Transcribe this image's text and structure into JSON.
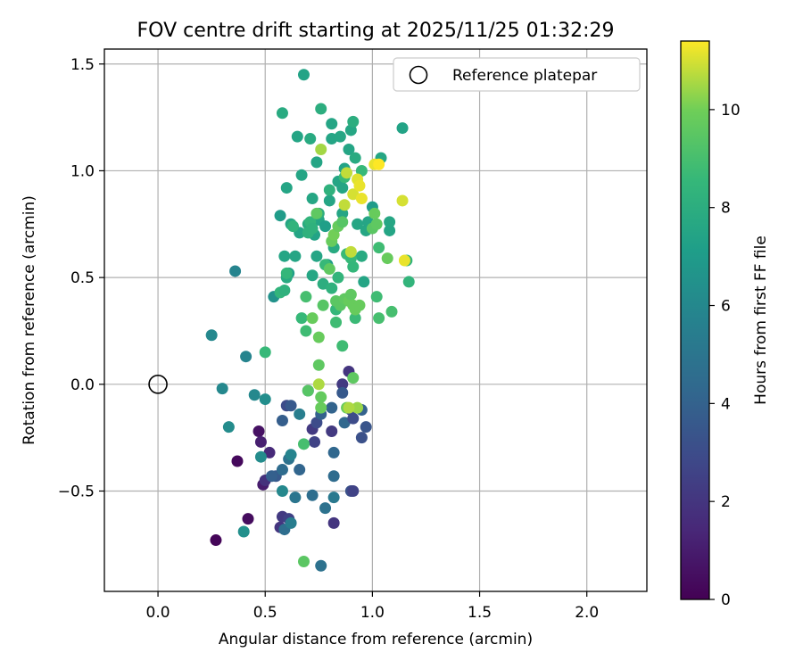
{
  "chart_data": {
    "type": "scatter",
    "title": "FOV centre drift starting at 2025/11/25 01:32:29",
    "xlabel": "Angular distance from reference (arcmin)",
    "ylabel": "Rotation from reference (arcmin)",
    "xlim": [
      -0.25,
      2.28
    ],
    "ylim": [
      -0.97,
      1.57
    ],
    "xticks": [
      0.0,
      0.5,
      1.0,
      1.5,
      2.0
    ],
    "xtick_labels": [
      "0.0",
      "0.5",
      "1.0",
      "1.5",
      "2.0"
    ],
    "yticks": [
      -0.5,
      0.0,
      0.5,
      1.0,
      1.5
    ],
    "ytick_labels": [
      "−0.5",
      "0.0",
      "0.5",
      "1.0",
      "1.5"
    ],
    "grid": true,
    "legend": {
      "location": "upper-right",
      "entries": [
        "Reference platepar"
      ]
    },
    "reference_point": {
      "label": "Reference platepar",
      "x": 0.0,
      "y": 0.0
    },
    "colorbar": {
      "label": "Hours from first FF file",
      "colormap": "viridis",
      "range": [
        0,
        11.4
      ],
      "ticks": [
        0,
        2,
        4,
        6,
        8,
        10
      ],
      "tick_labels": [
        "0",
        "2",
        "4",
        "6",
        "8",
        "10"
      ]
    },
    "points": [
      [
        0.27,
        -0.73,
        0.2
      ],
      [
        0.37,
        -0.36,
        0.3
      ],
      [
        0.42,
        -0.63,
        0.4
      ],
      [
        0.47,
        -0.22,
        0.6
      ],
      [
        0.48,
        -0.27,
        1.1
      ],
      [
        0.49,
        -0.47,
        1.0
      ],
      [
        0.52,
        -0.32,
        1.5
      ],
      [
        0.5,
        -0.45,
        1.8
      ],
      [
        0.57,
        -0.67,
        2.0
      ],
      [
        0.58,
        -0.62,
        2.2
      ],
      [
        0.61,
        -0.63,
        2.5
      ],
      [
        0.55,
        -0.43,
        3.6
      ],
      [
        0.58,
        -0.4,
        4.5
      ],
      [
        0.61,
        -0.35,
        4.8
      ],
      [
        0.53,
        -0.43,
        3.9
      ],
      [
        0.59,
        -0.68,
        4.6
      ],
      [
        0.6,
        -0.1,
        3.0
      ],
      [
        0.62,
        -0.1,
        3.6
      ],
      [
        0.58,
        -0.17,
        3.8
      ],
      [
        0.66,
        -0.14,
        5.5
      ],
      [
        0.66,
        -0.4,
        4.2
      ],
      [
        0.64,
        -0.53,
        5.0
      ],
      [
        0.62,
        -0.65,
        5.4
      ],
      [
        0.58,
        -0.5,
        6.0
      ],
      [
        0.7,
        -0.03,
        3.4
      ],
      [
        0.72,
        -0.21,
        2.2
      ],
      [
        0.74,
        -0.18,
        3.0
      ],
      [
        0.73,
        -0.27,
        2.6
      ],
      [
        0.76,
        -0.14,
        4.0
      ],
      [
        0.78,
        -0.58,
        4.8
      ],
      [
        0.72,
        -0.52,
        4.6
      ],
      [
        0.81,
        -0.22,
        2.2
      ],
      [
        0.81,
        -0.11,
        4.1
      ],
      [
        0.82,
        -0.32,
        4.3
      ],
      [
        0.82,
        -0.43,
        4.5
      ],
      [
        0.82,
        -0.53,
        5.2
      ],
      [
        0.82,
        -0.65,
        2.0
      ],
      [
        0.76,
        -0.85,
        4.8
      ],
      [
        0.86,
        0.0,
        2.2
      ],
      [
        0.86,
        -0.04,
        3.6
      ],
      [
        0.87,
        -0.18,
        4.3
      ],
      [
        0.89,
        0.06,
        2.0
      ],
      [
        0.9,
        -0.12,
        3.0
      ],
      [
        0.91,
        -0.16,
        3.0
      ],
      [
        0.95,
        -0.12,
        4.0
      ],
      [
        0.95,
        -0.25,
        3.2
      ],
      [
        0.97,
        -0.2,
        3.4
      ],
      [
        0.9,
        -0.5,
        3.2
      ],
      [
        0.91,
        -0.5,
        2.6
      ],
      [
        0.25,
        0.23,
        6.0
      ],
      [
        0.3,
        -0.02,
        6.0
      ],
      [
        0.33,
        -0.2,
        6.2
      ],
      [
        0.36,
        0.53,
        5.8
      ],
      [
        0.41,
        0.13,
        5.8
      ],
      [
        0.4,
        -0.69,
        6.4
      ],
      [
        0.45,
        -0.05,
        6.0
      ],
      [
        0.48,
        -0.34,
        6.2
      ],
      [
        0.5,
        -0.07,
        6.3
      ],
      [
        0.54,
        0.41,
        6.5
      ],
      [
        0.62,
        -0.33,
        5.8
      ],
      [
        0.57,
        0.79,
        7.0
      ],
      [
        0.58,
        1.27,
        7.8
      ],
      [
        0.62,
        0.75,
        7.6
      ],
      [
        0.6,
        0.92,
        7.5
      ],
      [
        0.61,
        0.52,
        7.2
      ],
      [
        0.59,
        0.6,
        7.5
      ],
      [
        0.6,
        0.5,
        7.8
      ],
      [
        0.64,
        0.6,
        7.5
      ],
      [
        0.65,
        1.16,
        7.5
      ],
      [
        0.66,
        0.71,
        7.5
      ],
      [
        0.67,
        0.98,
        7.5
      ],
      [
        0.68,
        1.45,
        7.4
      ],
      [
        0.7,
        0.75,
        7.8
      ],
      [
        0.71,
        1.15,
        7.8
      ],
      [
        0.72,
        0.87,
        7.6
      ],
      [
        0.72,
        0.51,
        7.6
      ],
      [
        0.73,
        0.7,
        7.4
      ],
      [
        0.74,
        0.6,
        7.5
      ],
      [
        0.74,
        1.04,
        7.5
      ],
      [
        0.75,
        0.77,
        7.5
      ],
      [
        0.76,
        1.29,
        8.0
      ],
      [
        0.77,
        0.47,
        8.0
      ],
      [
        0.78,
        0.74,
        7.2
      ],
      [
        0.79,
        0.56,
        7.0
      ],
      [
        0.8,
        0.86,
        7.5
      ],
      [
        0.81,
        1.15,
        7.5
      ],
      [
        0.81,
        1.22,
        7.5
      ],
      [
        0.82,
        0.64,
        7.8
      ],
      [
        0.84,
        0.95,
        7.5
      ],
      [
        0.85,
        1.16,
        7.6
      ],
      [
        0.86,
        0.92,
        7.5
      ],
      [
        0.86,
        0.8,
        7.5
      ],
      [
        0.87,
        1.01,
        7.4
      ],
      [
        0.89,
        1.1,
        7.5
      ],
      [
        0.9,
        1.19,
        7.6
      ],
      [
        0.91,
        1.23,
        8.0
      ],
      [
        0.92,
        1.06,
        7.8
      ],
      [
        0.93,
        0.75,
        7.6
      ],
      [
        0.95,
        0.6,
        7.8
      ],
      [
        0.96,
        0.48,
        7.5
      ],
      [
        0.97,
        0.72,
        7.6
      ],
      [
        0.98,
        0.76,
        7.5
      ],
      [
        1.0,
        0.83,
        7.0
      ],
      [
        1.04,
        1.06,
        7.6
      ],
      [
        1.08,
        0.72,
        7.5
      ],
      [
        1.08,
        0.76,
        7.6
      ],
      [
        1.14,
        1.2,
        7.4
      ],
      [
        1.16,
        0.58,
        8.4
      ],
      [
        1.17,
        0.48,
        8.4
      ],
      [
        0.5,
        0.15,
        8.6
      ],
      [
        0.57,
        0.43,
        8.4
      ],
      [
        0.59,
        0.44,
        8.2
      ],
      [
        0.6,
        0.52,
        8.5
      ],
      [
        0.63,
        0.74,
        8.3
      ],
      [
        0.67,
        0.31,
        8.6
      ],
      [
        0.69,
        0.25,
        8.8
      ],
      [
        0.7,
        0.71,
        8.2
      ],
      [
        0.71,
        0.76,
        8.4
      ],
      [
        0.72,
        0.73,
        8.2
      ],
      [
        0.75,
        0.8,
        8.0
      ],
      [
        0.78,
        0.56,
        8.6
      ],
      [
        0.8,
        0.91,
        8.2
      ],
      [
        0.81,
        0.45,
        8.2
      ],
      [
        0.83,
        0.35,
        8.5
      ],
      [
        0.83,
        0.29,
        8.8
      ],
      [
        0.84,
        0.5,
        8.4
      ],
      [
        0.86,
        0.18,
        8.8
      ],
      [
        0.87,
        0.97,
        8.6
      ],
      [
        0.88,
        0.61,
        8.7
      ],
      [
        0.9,
        0.59,
        8.6
      ],
      [
        0.91,
        0.55,
        8.5
      ],
      [
        0.92,
        0.31,
        8.7
      ],
      [
        0.95,
        1.0,
        8.6
      ],
      [
        1.02,
        0.41,
        8.8
      ],
      [
        1.03,
        0.64,
        8.8
      ],
      [
        1.03,
        0.31,
        9.0
      ],
      [
        1.09,
        0.34,
        9.0
      ],
      [
        0.68,
        -0.28,
        9.0
      ],
      [
        0.68,
        -0.83,
        9.5
      ],
      [
        0.69,
        0.41,
        9.0
      ],
      [
        0.7,
        -0.03,
        9.4
      ],
      [
        0.72,
        0.31,
        9.8
      ],
      [
        0.74,
        0.8,
        9.6
      ],
      [
        0.75,
        0.09,
        9.6
      ],
      [
        0.75,
        0.22,
        9.8
      ],
      [
        0.76,
        -0.06,
        9.7
      ],
      [
        0.76,
        -0.11,
        9.8
      ],
      [
        0.77,
        0.37,
        9.4
      ],
      [
        0.8,
        0.54,
        9.6
      ],
      [
        0.81,
        0.67,
        9.8
      ],
      [
        0.82,
        0.7,
        10.0
      ],
      [
        0.83,
        0.39,
        9.5
      ],
      [
        0.84,
        0.74,
        9.8
      ],
      [
        0.85,
        0.37,
        9.5
      ],
      [
        0.86,
        0.76,
        9.4
      ],
      [
        0.87,
        0.4,
        9.6
      ],
      [
        0.88,
        -0.11,
        9.8
      ],
      [
        0.89,
        0.39,
        9.8
      ],
      [
        0.9,
        0.42,
        9.6
      ],
      [
        0.91,
        0.03,
        9.6
      ],
      [
        0.91,
        0.37,
        9.8
      ],
      [
        0.92,
        0.35,
        9.8
      ],
      [
        0.94,
        0.37,
        9.8
      ],
      [
        1.0,
        0.73,
        9.5
      ],
      [
        1.01,
        0.8,
        9.8
      ],
      [
        1.02,
        0.75,
        9.6
      ],
      [
        1.07,
        0.59,
        9.8
      ],
      [
        0.75,
        0.0,
        10.6
      ],
      [
        0.76,
        1.1,
        10.5
      ],
      [
        0.87,
        0.84,
        10.8
      ],
      [
        0.88,
        0.99,
        10.8
      ],
      [
        0.9,
        0.62,
        10.8
      ],
      [
        0.91,
        0.89,
        11.0
      ],
      [
        0.93,
        0.96,
        11.1
      ],
      [
        0.94,
        0.93,
        11.2
      ],
      [
        0.95,
        0.87,
        11.2
      ],
      [
        1.01,
        1.03,
        11.2
      ],
      [
        1.03,
        1.03,
        11.4
      ],
      [
        1.14,
        0.86,
        11.0
      ],
      [
        1.15,
        0.58,
        11.2
      ],
      [
        0.93,
        -0.11,
        10.4
      ],
      [
        0.89,
        -0.11,
        10.6
      ]
    ]
  }
}
